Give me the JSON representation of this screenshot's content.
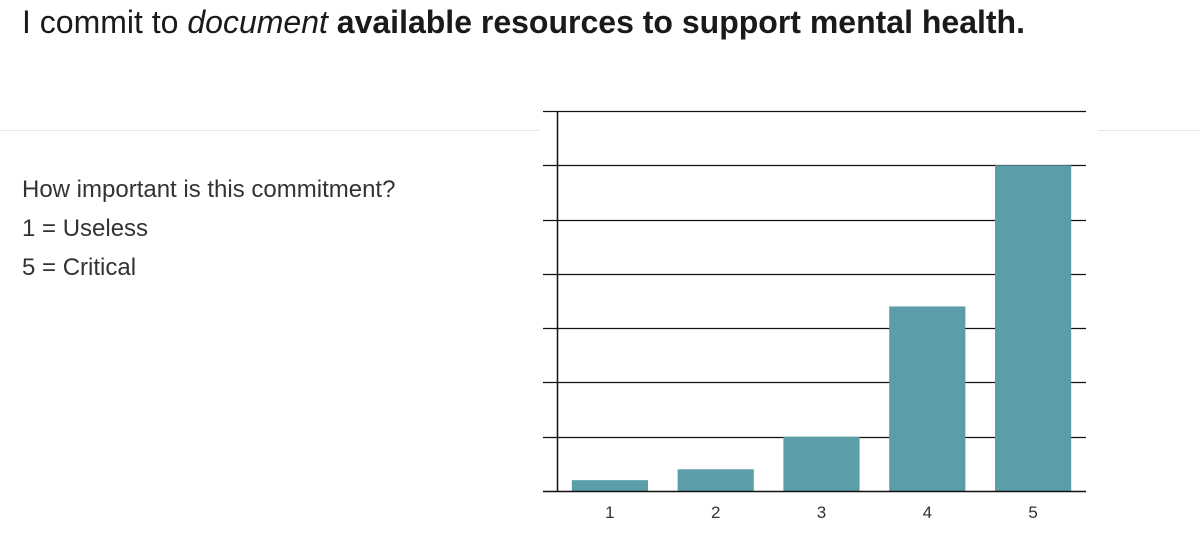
{
  "title": {
    "prefix": "I commit to ",
    "emphasis": "document",
    "space": " ",
    "strong": "available resources to support mental health."
  },
  "description": {
    "question": "How important is this commitment?",
    "scale_low": "1 = Useless",
    "scale_high": "5 = Critical"
  },
  "chart_data": {
    "type": "bar",
    "categories": [
      "1",
      "2",
      "3",
      "4",
      "5"
    ],
    "values": [
      1,
      2,
      5,
      17,
      30
    ],
    "ylim": [
      0,
      35
    ],
    "grid": true,
    "bar_color": "#5b9ea9"
  }
}
